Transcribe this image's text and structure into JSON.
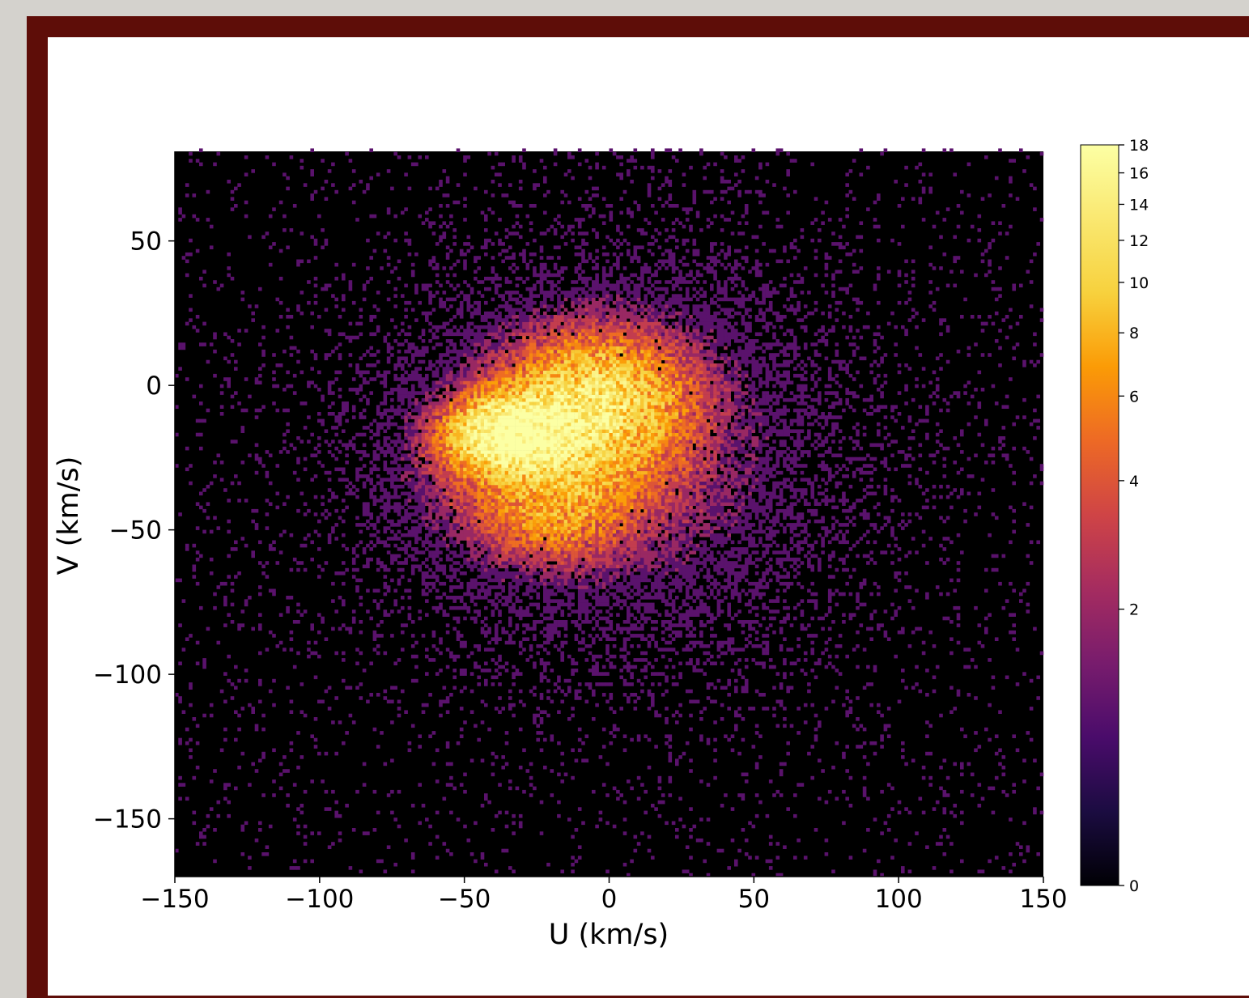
{
  "chart_data": {
    "type": "heatmap",
    "xlabel": "U (km/s)",
    "ylabel": "V (km/s)",
    "xlim": [
      -150,
      150
    ],
    "ylim": [
      -170,
      81
    ],
    "xticks": [
      -150,
      -100,
      -50,
      0,
      50,
      100,
      150
    ],
    "xtick_labels": [
      "−150",
      "−100",
      "−50",
      "0",
      "50",
      "100",
      "150"
    ],
    "yticks": [
      50,
      0,
      -50,
      -100,
      -150
    ],
    "ytick_labels": [
      "50",
      "0",
      "−50",
      "−100",
      "−150"
    ],
    "colorbar": {
      "scale": "log",
      "range": [
        0,
        18
      ],
      "ticks": [
        0,
        2,
        4,
        6,
        8,
        10,
        12,
        14,
        16,
        18
      ],
      "tick_labels": [
        "0",
        "2",
        "4",
        "6",
        "8",
        "10",
        "12",
        "14",
        "16",
        "18"
      ],
      "colormap": "inferno"
    },
    "density_components": [
      {
        "u_center": -35,
        "v_center": -17,
        "u_sigma": 13,
        "v_sigma": 8,
        "peak_count": 18
      },
      {
        "u_center": -5,
        "v_center": -5,
        "u_sigma": 20,
        "v_sigma": 14,
        "peak_count": 11
      },
      {
        "u_center": -20,
        "v_center": -30,
        "u_sigma": 24,
        "v_sigma": 14,
        "peak_count": 6
      },
      {
        "u_center": -20,
        "v_center": -50,
        "u_sigma": 15,
        "v_sigma": 9,
        "peak_count": 3
      },
      {
        "u_center": 0,
        "v_center": -25,
        "u_sigma": 42,
        "v_sigma": 36,
        "peak_count": 2
      }
    ],
    "background_color": "#000000",
    "frame_color": "#5e0d08"
  }
}
